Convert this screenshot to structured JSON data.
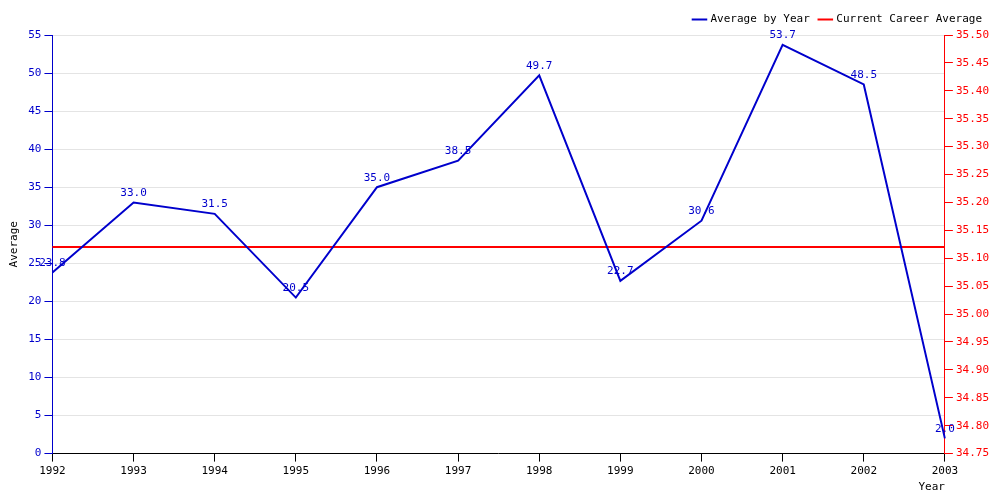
{
  "chart_data": {
    "type": "line",
    "x_label": "Year",
    "y_label": "Average",
    "categories": [
      "1992",
      "1993",
      "1994",
      "1995",
      "1996",
      "1997",
      "1998",
      "1999",
      "2000",
      "2001",
      "2002",
      "2003"
    ],
    "series": [
      {
        "name": "Average by Year",
        "color": "#0000cc",
        "marker": "none",
        "line_style": "solid",
        "data_labels": true,
        "values": [
          23.8,
          33.0,
          31.5,
          20.5,
          35.0,
          38.5,
          49.7,
          22.7,
          30.6,
          53.7,
          48.5,
          2.0
        ],
        "value_labels": [
          "23.8",
          "33.0",
          "31.5",
          "20.5",
          "35.0",
          "38.5",
          "49.7",
          "22.7",
          "30.6",
          "53.7",
          "48.5",
          "2.0"
        ]
      },
      {
        "name": "Current Career Average",
        "color": "#ff0000",
        "marker": "none",
        "line_style": "solid",
        "axis": "y2",
        "values": [
          35.12,
          35.12,
          35.12,
          35.12,
          35.12,
          35.12,
          35.12,
          35.12,
          35.12,
          35.12,
          35.12,
          35.12
        ]
      }
    ],
    "ylim": [
      0,
      55
    ],
    "yticks": [
      0,
      5,
      10,
      15,
      20,
      25,
      30,
      35,
      40,
      45,
      50,
      55
    ],
    "y2lim": [
      34.75,
      35.5
    ],
    "y2ticks": [
      34.75,
      {
        "value": 34.8,
        "label": "34.80"
      },
      34.85,
      {
        "value": 34.9,
        "label": "34.90"
      },
      34.95,
      {
        "value": 35.0,
        "label": "35.00"
      },
      35.05,
      {
        "value": 35.1,
        "label": "35.10"
      },
      35.15,
      {
        "value": 35.2,
        "label": "35.20"
      },
      35.25,
      {
        "value": 35.3,
        "label": "35.30"
      },
      35.35,
      {
        "value": 35.4,
        "label": "35.40"
      },
      35.45,
      {
        "value": 35.5,
        "label": "35.50"
      }
    ],
    "grid": true,
    "legend": "upper right"
  }
}
